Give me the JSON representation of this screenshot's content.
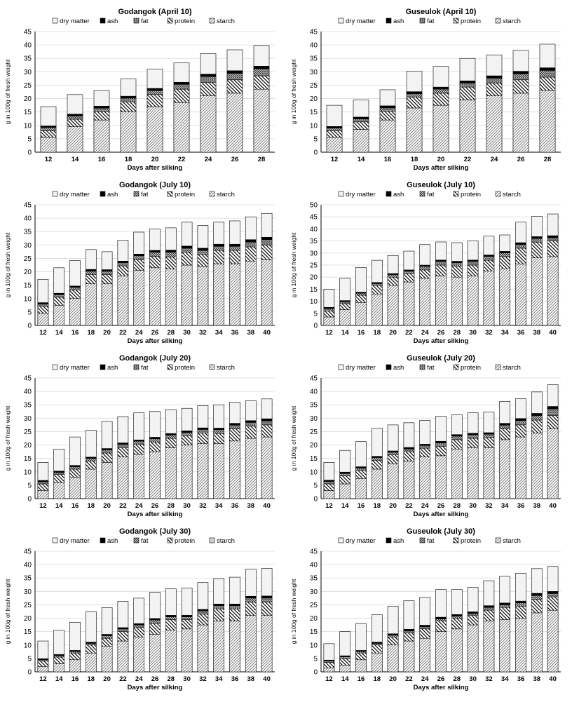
{
  "legend": {
    "dry_matter": "dry matter",
    "ash": "ash",
    "fat": "fat",
    "protein": "protein",
    "starch": "starch"
  },
  "colors": {
    "dry_matter": "#f3f3f3",
    "ash": "#000000",
    "axis": "#000000",
    "grid": "#d9d9d9"
  },
  "chart_data": [
    {
      "type": "bar",
      "stacked": true,
      "title": "Godangok (April 10)",
      "xlabel": "Days after silking",
      "ylabel": "g in 100g of fresh weight",
      "ylim": [
        0,
        45
      ],
      "yticks": [
        0,
        5,
        10,
        15,
        20,
        25,
        30,
        35,
        40,
        45
      ],
      "categories": [
        "12",
        "14",
        "16",
        "18",
        "20",
        "22",
        "24",
        "26",
        "28"
      ],
      "series": [
        {
          "name": "starch",
          "values": [
            5.5,
            9.5,
            12,
            15,
            17,
            18.5,
            21,
            22,
            23.5
          ]
        },
        {
          "name": "protein",
          "values": [
            2.5,
            2.8,
            3.2,
            3.8,
            4.5,
            5,
            5,
            5,
            5
          ]
        },
        {
          "name": "fat",
          "values": [
            1.2,
            1.2,
            1.2,
            1.3,
            1.5,
            1.8,
            2.2,
            2.4,
            2.6
          ]
        },
        {
          "name": "ash",
          "values": [
            0.6,
            0.7,
            0.8,
            0.8,
            0.8,
            0.8,
            0.9,
            1,
            1
          ]
        }
      ],
      "dry_matter": [
        17,
        21.5,
        23,
        27.3,
        31,
        33.3,
        36.8,
        38.2,
        39.8
      ],
      "legend_position": "top"
    },
    {
      "type": "bar",
      "stacked": true,
      "title": "Guseulok (April 10)",
      "xlabel": "Days after silking",
      "ylabel": "g in 100g of fresh weight",
      "ylim": [
        0,
        45
      ],
      "yticks": [
        0,
        5,
        10,
        15,
        20,
        25,
        30,
        35,
        40,
        45
      ],
      "categories": [
        "12",
        "14",
        "16",
        "18",
        "20",
        "22",
        "24",
        "26",
        "28"
      ],
      "series": [
        {
          "name": "starch",
          "values": [
            5.5,
            8.5,
            12,
            16.5,
            17.5,
            19.5,
            21,
            22,
            23
          ]
        },
        {
          "name": "protein",
          "values": [
            2.5,
            2.8,
            3.3,
            4,
            4.5,
            4.8,
            4.8,
            5,
            5
          ]
        },
        {
          "name": "fat",
          "values": [
            1,
            1.1,
            1.2,
            1.3,
            1.5,
            1.5,
            1.8,
            2.2,
            2.5
          ]
        },
        {
          "name": "ash",
          "values": [
            0.6,
            0.7,
            0.8,
            0.8,
            0.8,
            0.8,
            0.9,
            1,
            1
          ]
        }
      ],
      "dry_matter": [
        17.5,
        19.5,
        23.3,
        30.2,
        32,
        35,
        36.3,
        38,
        40.3
      ],
      "legend_position": "top"
    },
    {
      "type": "bar",
      "stacked": true,
      "title": "Godangok (July 10)",
      "xlabel": "Days after silking",
      "ylabel": "g in 100g of fresh weight",
      "ylim": [
        0,
        45
      ],
      "yticks": [
        0,
        5,
        10,
        15,
        20,
        25,
        30,
        35,
        40,
        45
      ],
      "categories": [
        "12",
        "14",
        "16",
        "18",
        "20",
        "22",
        "24",
        "26",
        "28",
        "30",
        "32",
        "34",
        "36",
        "38",
        "40"
      ],
      "series": [
        {
          "name": "starch",
          "values": [
            4.5,
            7.5,
            10,
            15.5,
            15.5,
            18.5,
            20.5,
            21.5,
            21,
            22.5,
            22,
            23,
            23,
            24,
            24.5
          ]
        },
        {
          "name": "protein",
          "values": [
            2.5,
            3,
            3.2,
            3.5,
            3.5,
            3.7,
            4,
            4.2,
            4.5,
            4.8,
            4.5,
            5,
            5,
            5.3,
            5.5
          ]
        },
        {
          "name": "fat",
          "values": [
            1,
            1,
            1,
            1.2,
            1.2,
            1.2,
            1.5,
            1.6,
            1.8,
            1.5,
            1.5,
            1.5,
            1.5,
            1.8,
            2
          ]
        },
        {
          "name": "ash",
          "values": [
            0.5,
            0.5,
            0.5,
            0.7,
            0.6,
            0.6,
            0.6,
            0.7,
            0.8,
            0.8,
            0.8,
            0.8,
            0.8,
            0.9,
            0.9
          ]
        }
      ],
      "dry_matter": [
        17.2,
        21.5,
        24.2,
        28.3,
        27.5,
        31.8,
        34.8,
        36,
        36.4,
        38.5,
        37.3,
        38.5,
        39,
        40.5,
        41.8
      ],
      "legend_position": "top"
    },
    {
      "type": "bar",
      "stacked": true,
      "title": "Guseulok (July 10)",
      "xlabel": "Days after silking",
      "ylabel": "g in 100g of fresh weight",
      "ylim": [
        0,
        50
      ],
      "yticks": [
        0,
        5,
        10,
        15,
        20,
        25,
        30,
        35,
        40,
        45,
        50
      ],
      "categories": [
        "12",
        "14",
        "16",
        "18",
        "20",
        "22",
        "24",
        "26",
        "28",
        "30",
        "32",
        "34",
        "36",
        "38",
        "40"
      ],
      "series": [
        {
          "name": "starch",
          "values": [
            3.5,
            6.5,
            9.5,
            13,
            16.5,
            18,
            19.5,
            20.5,
            20,
            20.5,
            22.5,
            23.5,
            25.5,
            28,
            28.5
          ]
        },
        {
          "name": "protein",
          "values": [
            2.5,
            2.5,
            3,
            3.5,
            3.5,
            3.5,
            3.5,
            4.5,
            4.5,
            4.5,
            4.5,
            5,
            6.5,
            6.5,
            6.5
          ]
        },
        {
          "name": "fat",
          "values": [
            1,
            0.8,
            0.8,
            0.8,
            1,
            1,
            1.5,
            1.5,
            1.5,
            1.5,
            1.6,
            1.5,
            1.5,
            1.5,
            1.3
          ]
        },
        {
          "name": "ash",
          "values": [
            0.5,
            0.5,
            0.5,
            0.5,
            0.5,
            0.5,
            0.5,
            0.6,
            0.6,
            0.6,
            0.6,
            0.7,
            0.8,
            0.8,
            0.9
          ]
        }
      ],
      "dry_matter": [
        15,
        19.5,
        24,
        27,
        29,
        30.8,
        33.5,
        34.6,
        34.3,
        35,
        37,
        37.5,
        42.8,
        45.2,
        46.2
      ],
      "legend_position": "top"
    },
    {
      "type": "bar",
      "stacked": true,
      "title": "Godangok (July 20)",
      "xlabel": "Days after silking",
      "ylabel": "g in 100g of fresh weight",
      "ylim": [
        0,
        45
      ],
      "yticks": [
        0,
        5,
        10,
        15,
        20,
        25,
        30,
        35,
        40,
        45
      ],
      "categories": [
        "12",
        "14",
        "16",
        "18",
        "20",
        "22",
        "24",
        "26",
        "28",
        "30",
        "32",
        "34",
        "36",
        "38",
        "40"
      ],
      "series": [
        {
          "name": "starch",
          "values": [
            3,
            6,
            8,
            11,
            13.5,
            15.5,
            16.5,
            17.5,
            19,
            20,
            20.5,
            20.5,
            21.5,
            22.5,
            23
          ]
        },
        {
          "name": "protein",
          "values": [
            2.5,
            3,
            3,
            3,
            3.5,
            3.5,
            3.7,
            3.5,
            3.5,
            3.5,
            4,
            3.8,
            4.5,
            4.5,
            4.5
          ]
        },
        {
          "name": "fat",
          "values": [
            0.8,
            0.8,
            0.9,
            1,
            1.2,
            1.2,
            1.2,
            1.3,
            1.2,
            1.2,
            1.3,
            1.4,
            1.4,
            1.4,
            1.5
          ]
        },
        {
          "name": "ash",
          "values": [
            0.5,
            0.5,
            0.5,
            0.5,
            0.5,
            0.6,
            0.5,
            0.6,
            0.6,
            0.6,
            0.6,
            0.6,
            0.7,
            0.7,
            0.8
          ]
        }
      ],
      "dry_matter": [
        13.5,
        18.5,
        23,
        25.5,
        28.8,
        30.6,
        32,
        32.5,
        33.2,
        33.7,
        34.7,
        35,
        36,
        36.5,
        37.2
      ],
      "legend_position": "top"
    },
    {
      "type": "bar",
      "stacked": true,
      "title": "Guseulok (July 20)",
      "xlabel": "Days after silking",
      "ylabel": "g in 100g of fresh weight",
      "ylim": [
        0,
        45
      ],
      "yticks": [
        0,
        5,
        10,
        15,
        20,
        25,
        30,
        35,
        40,
        45
      ],
      "categories": [
        "12",
        "14",
        "16",
        "18",
        "20",
        "22",
        "24",
        "26",
        "28",
        "30",
        "32",
        "34",
        "36",
        "38",
        "40"
      ],
      "series": [
        {
          "name": "starch",
          "values": [
            3,
            5.5,
            7.5,
            11,
            13,
            14,
            15.5,
            16,
            18.5,
            19,
            19,
            22,
            23,
            24.5,
            26
          ]
        },
        {
          "name": "protein",
          "values": [
            2.5,
            3,
            3,
            3.3,
            3.3,
            3.5,
            3.3,
            3.5,
            3.5,
            3.5,
            3.8,
            4,
            4.5,
            4.8,
            5
          ]
        },
        {
          "name": "fat",
          "values": [
            0.9,
            0.9,
            0.9,
            1,
            1,
            1,
            1,
            1.3,
            1.3,
            1.3,
            1.2,
            1.4,
            1.6,
            1.7,
            2.5
          ]
        },
        {
          "name": "ash",
          "values": [
            0.5,
            0.5,
            0.5,
            0.5,
            0.5,
            0.6,
            0.5,
            0.6,
            0.6,
            0.6,
            0.6,
            0.7,
            0.8,
            0.8,
            0.9
          ]
        }
      ],
      "dry_matter": [
        13.5,
        18,
        21.3,
        26.2,
        27.5,
        28.3,
        29.2,
        30.7,
        31.3,
        32,
        32.3,
        36.3,
        37.3,
        39.8,
        42.5
      ],
      "legend_position": "top"
    },
    {
      "type": "bar",
      "stacked": true,
      "title": "Godangok (July 30)",
      "xlabel": "Days after silking",
      "ylabel": "g in 100g of fresh weight",
      "ylim": [
        0,
        45
      ],
      "yticks": [
        0,
        5,
        10,
        15,
        20,
        25,
        30,
        35,
        40,
        45
      ],
      "categories": [
        "12",
        "14",
        "16",
        "18",
        "20",
        "22",
        "24",
        "26",
        "28",
        "30",
        "32",
        "34",
        "36",
        "38",
        "40"
      ],
      "series": [
        {
          "name": "starch",
          "values": [
            2,
            3,
            4.5,
            7,
            9.5,
            11.5,
            13,
            14,
            15.5,
            16,
            17.5,
            19,
            19,
            21,
            21
          ]
        },
        {
          "name": "protein",
          "values": [
            2,
            2.5,
            2.5,
            3,
            3,
            3.5,
            3.5,
            4,
            4,
            3.5,
            4,
            4.5,
            4.5,
            5,
            5
          ]
        },
        {
          "name": "fat",
          "values": [
            0.5,
            0.6,
            0.6,
            0.6,
            1,
            1,
            1,
            1.3,
            1,
            1,
            1.2,
            1.2,
            1.2,
            1.5,
            1.5
          ]
        },
        {
          "name": "ash",
          "values": [
            0.4,
            0.4,
            0.4,
            0.5,
            0.5,
            0.5,
            0.5,
            0.6,
            0.6,
            0.6,
            0.6,
            0.6,
            0.6,
            0.7,
            0.8
          ]
        }
      ],
      "dry_matter": [
        11.5,
        15.5,
        18.5,
        22.5,
        24,
        26.3,
        27.5,
        29.7,
        31,
        31.3,
        33.3,
        34.8,
        35.3,
        38.3,
        38.6
      ],
      "legend_position": "top"
    },
    {
      "type": "bar",
      "stacked": true,
      "title": "Guseulok (July 30)",
      "xlabel": "Days after silking",
      "ylabel": "g in 100g of fresh weight",
      "ylim": [
        0,
        45
      ],
      "yticks": [
        0,
        5,
        10,
        15,
        20,
        25,
        30,
        35,
        40,
        45
      ],
      "categories": [
        "12",
        "14",
        "16",
        "18",
        "20",
        "22",
        "24",
        "26",
        "28",
        "30",
        "32",
        "34",
        "36",
        "38",
        "40"
      ],
      "series": [
        {
          "name": "starch",
          "values": [
            1.5,
            2.5,
            4.5,
            7,
            10,
            11.5,
            12.5,
            15,
            16,
            17.5,
            19,
            19.5,
            20,
            22,
            23
          ]
        },
        {
          "name": "protein",
          "values": [
            2,
            2.5,
            2.5,
            3,
            3,
            3,
            3.5,
            4,
            4,
            3.5,
            4,
            4.5,
            4.5,
            5,
            5
          ]
        },
        {
          "name": "fat",
          "values": [
            0.5,
            0.6,
            0.6,
            0.6,
            0.7,
            0.8,
            0.8,
            0.7,
            0.8,
            0.8,
            1,
            1,
            1.2,
            1.5,
            1.2
          ]
        },
        {
          "name": "ash",
          "values": [
            0.4,
            0.4,
            0.4,
            0.5,
            0.5,
            0.6,
            0.6,
            0.7,
            0.6,
            0.6,
            0.7,
            0.7,
            0.7,
            0.8,
            0.8
          ]
        }
      ],
      "dry_matter": [
        10.5,
        15,
        18,
        21.3,
        24.5,
        26.5,
        27.8,
        30.7,
        30.7,
        31.5,
        34,
        35.7,
        36.8,
        38.5,
        39.3
      ],
      "legend_position": "top"
    }
  ]
}
